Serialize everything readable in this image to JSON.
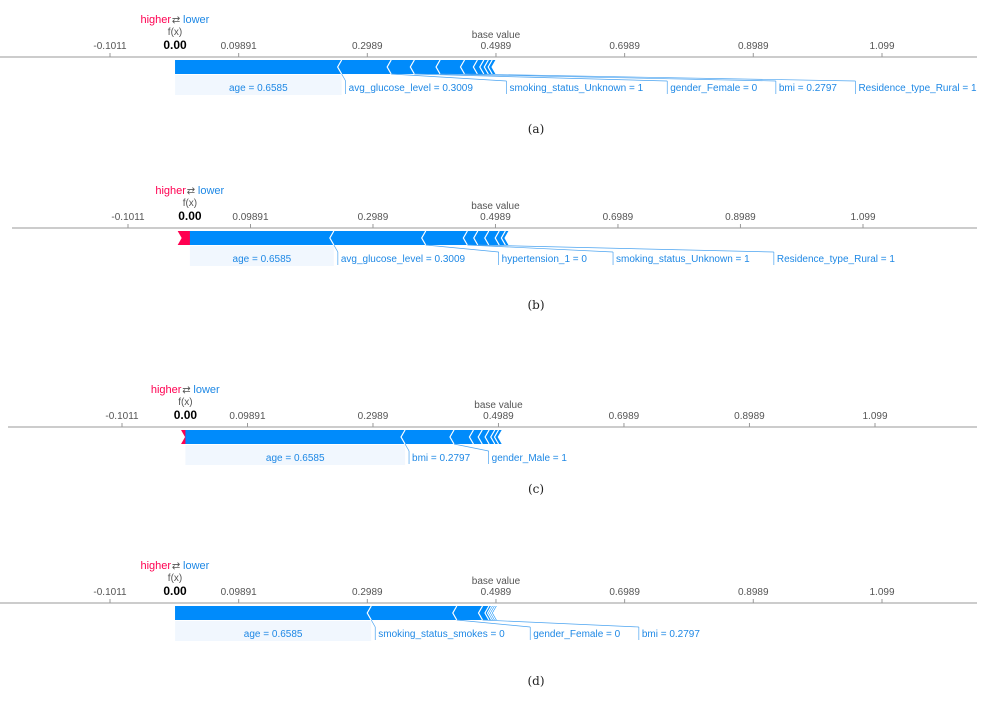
{
  "legend": {
    "higher": "higher",
    "lower": "lower",
    "arrows": "⇄"
  },
  "labels": {
    "fx": "f(x)",
    "base": "base value"
  },
  "chart_data": [
    {
      "type": "force",
      "caption": "(a)",
      "fx_value": 0.0,
      "fx_label": "0.00",
      "base_value": 0.4989,
      "ticks": [
        -0.1011,
        0.09891,
        0.2989,
        0.4989,
        0.6989,
        0.8989,
        1.099
      ],
      "tick_labels": [
        "-0.1011",
        "0.09891",
        "0.2989",
        "0.4989",
        "0.6989",
        "0.8989",
        "1.099"
      ],
      "positive_features": [],
      "negative_features": [
        {
          "label": "age = 0.6585",
          "value": 0.259
        },
        {
          "label": "avg_glucose_level = 0.3009",
          "value": 0.077
        },
        {
          "label": "smoking_status_Unknown = 1",
          "value": 0.036
        },
        {
          "label": "gender_Female = 0",
          "value": 0.04
        },
        {
          "label": "bmi = 0.2797",
          "value": 0.038
        },
        {
          "label": "Residence_type_Rural = 1",
          "value": 0.02
        },
        {
          "label": "",
          "value": 0.01
        },
        {
          "label": "",
          "value": 0.007
        },
        {
          "label": "",
          "value": 0.006
        },
        {
          "label": "",
          "value": 0.005
        }
      ]
    },
    {
      "type": "force",
      "caption": "(b)",
      "fx_value": 0.0,
      "fx_label": "0.00",
      "base_value": 0.4989,
      "ticks": [
        -0.1011,
        0.09891,
        0.2989,
        0.4989,
        0.6989,
        0.8989,
        1.099
      ],
      "tick_labels": [
        "-0.1011",
        "0.09891",
        "0.2989",
        "0.4989",
        "0.6989",
        "0.8989",
        "1.099"
      ],
      "positive_features": [
        {
          "label": "",
          "value": 0.02
        }
      ],
      "negative_features": [
        {
          "label": "age = 0.6585",
          "value": 0.235
        },
        {
          "label": "avg_glucose_level = 0.3009",
          "value": 0.15
        },
        {
          "label": "hypertension_1 = 0",
          "value": 0.068
        },
        {
          "label": "smoking_status_Unknown = 1",
          "value": 0.017
        },
        {
          "label": "Residence_type_Rural = 1",
          "value": 0.018
        },
        {
          "label": "",
          "value": 0.017
        },
        {
          "label": "",
          "value": 0.01
        },
        {
          "label": "",
          "value": 0.005
        }
      ]
    },
    {
      "type": "force",
      "caption": "(c)",
      "fx_value": 0.0,
      "fx_label": "0.00",
      "base_value": 0.4989,
      "ticks": [
        -0.1011,
        0.09891,
        0.2989,
        0.4989,
        0.6989,
        0.8989,
        1.099
      ],
      "tick_labels": [
        "-0.1011",
        "0.09891",
        "0.2989",
        "0.4989",
        "0.6989",
        "0.8989",
        "1.099"
      ],
      "positive_features": [
        {
          "label": "",
          "value": 0.007
        }
      ],
      "negative_features": [
        {
          "label": "age = 0.6585",
          "value": 0.35
        },
        {
          "label": "bmi = 0.2797",
          "value": 0.078
        },
        {
          "label": "gender_Male = 1",
          "value": 0.031
        },
        {
          "label": "",
          "value": 0.014
        },
        {
          "label": "",
          "value": 0.011
        },
        {
          "label": "",
          "value": 0.009
        },
        {
          "label": "",
          "value": 0.006
        },
        {
          "label": "",
          "value": 0.005
        }
      ]
    },
    {
      "type": "force",
      "caption": "(d)",
      "fx_value": 0.0,
      "fx_label": "0.00",
      "base_value": 0.4989,
      "ticks": [
        -0.1011,
        0.09891,
        0.2989,
        0.4989,
        0.6989,
        0.8989,
        1.099
      ],
      "tick_labels": [
        "-0.1011",
        "0.09891",
        "0.2989",
        "0.4989",
        "0.6989",
        "0.8989",
        "1.099"
      ],
      "positive_features": [],
      "negative_features": [
        {
          "label": "age = 0.6585",
          "value": 0.305
        },
        {
          "label": "smoking_status_smokes = 0",
          "value": 0.133
        },
        {
          "label": "gender_Female = 0",
          "value": 0.04
        },
        {
          "label": "bmi = 0.2797",
          "value": 0.01
        },
        {
          "label": "",
          "value": 0.004
        },
        {
          "label": "",
          "value": 0.003
        },
        {
          "label": "",
          "value": 0.003
        },
        {
          "label": "",
          "value": 0.002
        }
      ]
    }
  ],
  "colors": {
    "positive": "#ff0051",
    "negative": "#008bfb",
    "feature_text": "#1e88e5",
    "axis": "#999999"
  }
}
